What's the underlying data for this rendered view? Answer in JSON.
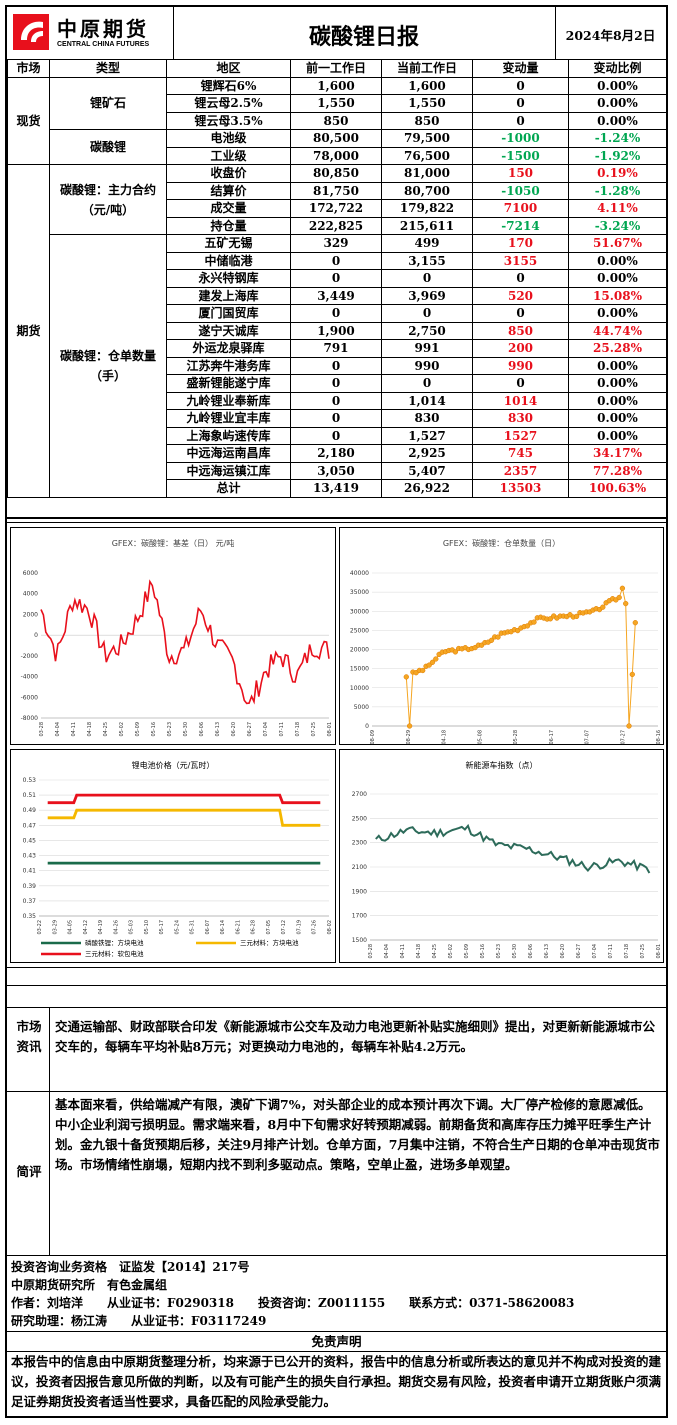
{
  "header": {
    "logo_cn": "中原期货",
    "logo_en": "CENTRAL CHINA FUTURES",
    "title": "碳酸锂日报",
    "date": "2024年8月2日"
  },
  "table": {
    "headers": [
      "市场",
      "类型",
      "地区",
      "前一工作日",
      "当前工作日",
      "变动量",
      "变动比例"
    ],
    "spot_market": "现货",
    "futures_market": "期货",
    "groups": {
      "ore": "锂矿石",
      "carbonate": "碳酸锂",
      "contract": "碳酸锂：主力合约（元/吨）",
      "warehouse": "碳酸锂：仓单数量（手）"
    },
    "rows": [
      {
        "name": "锂辉石6%",
        "prev": "1,600",
        "cur": "1,600",
        "chg": "0",
        "pct": "0.00%",
        "color": "black"
      },
      {
        "name": "锂云母2.5%",
        "prev": "1,550",
        "cur": "1,550",
        "chg": "0",
        "pct": "0.00%",
        "color": "black"
      },
      {
        "name": "锂云母3.5%",
        "prev": "850",
        "cur": "850",
        "chg": "0",
        "pct": "0.00%",
        "color": "black"
      },
      {
        "name": "电池级",
        "prev": "80,500",
        "cur": "79,500",
        "chg": "-1000",
        "pct": "-1.24%",
        "color": "green"
      },
      {
        "name": "工业级",
        "prev": "78,000",
        "cur": "76,500",
        "chg": "-1500",
        "pct": "-1.92%",
        "color": "green"
      },
      {
        "name": "收盘价",
        "prev": "80,850",
        "cur": "81,000",
        "chg": "150",
        "pct": "0.19%",
        "color": "red"
      },
      {
        "name": "结算价",
        "prev": "81,750",
        "cur": "80,700",
        "chg": "-1050",
        "pct": "-1.28%",
        "color": "green"
      },
      {
        "name": "成交量",
        "prev": "172,722",
        "cur": "179,822",
        "chg": "7100",
        "pct": "4.11%",
        "color": "red"
      },
      {
        "name": "持仓量",
        "prev": "222,825",
        "cur": "215,611",
        "chg": "-7214",
        "pct": "-3.24%",
        "color": "green"
      },
      {
        "name": "五矿无锡",
        "prev": "329",
        "cur": "499",
        "chg": "170",
        "pct": "51.67%",
        "color": "red"
      },
      {
        "name": "中储临港",
        "prev": "0",
        "cur": "3,155",
        "chg": "3155",
        "pct": "0.00%",
        "color": "mixred"
      },
      {
        "name": "永兴特钢库",
        "prev": "0",
        "cur": "0",
        "chg": "0",
        "pct": "0.00%",
        "color": "black"
      },
      {
        "name": "建发上海库",
        "prev": "3,449",
        "cur": "3,969",
        "chg": "520",
        "pct": "15.08%",
        "color": "red"
      },
      {
        "name": "厦门国贸库",
        "prev": "0",
        "cur": "0",
        "chg": "0",
        "pct": "0.00%",
        "color": "black"
      },
      {
        "name": "遂宁天诚库",
        "prev": "1,900",
        "cur": "2,750",
        "chg": "850",
        "pct": "44.74%",
        "color": "red"
      },
      {
        "name": "外运龙泉驿库",
        "prev": "791",
        "cur": "991",
        "chg": "200",
        "pct": "25.28%",
        "color": "red"
      },
      {
        "name": "江苏奔牛港务库",
        "prev": "0",
        "cur": "990",
        "chg": "990",
        "pct": "0.00%",
        "color": "mixred"
      },
      {
        "name": "盛新锂能遂宁库",
        "prev": "0",
        "cur": "0",
        "chg": "0",
        "pct": "0.00%",
        "color": "black"
      },
      {
        "name": "九岭锂业奉新库",
        "prev": "0",
        "cur": "1,014",
        "chg": "1014",
        "pct": "0.00%",
        "color": "mixred"
      },
      {
        "name": "九岭锂业宜丰库",
        "prev": "0",
        "cur": "830",
        "chg": "830",
        "pct": "0.00%",
        "color": "mixred"
      },
      {
        "name": "上海象屿速传库",
        "prev": "0",
        "cur": "1,527",
        "chg": "1527",
        "pct": "0.00%",
        "color": "mixred"
      },
      {
        "name": "中远海运南昌库",
        "prev": "2,180",
        "cur": "2,925",
        "chg": "745",
        "pct": "34.17%",
        "color": "red"
      },
      {
        "name": "中远海运镇江库",
        "prev": "3,050",
        "cur": "5,407",
        "chg": "2357",
        "pct": "77.28%",
        "color": "red"
      },
      {
        "name": "总计",
        "prev": "13,419",
        "cur": "26,922",
        "chg": "13503",
        "pct": "100.63%",
        "color": "red"
      }
    ]
  },
  "charts": {
    "basis": {
      "title": "GFEX：碳酸锂：基差（日） 元/吨",
      "yticks": [
        "6000",
        "4000",
        "2000",
        "0",
        "-2000",
        "-4000",
        "-6000",
        "-8000"
      ],
      "xticks": [
        "03-28",
        "04-04",
        "04-11",
        "04-18",
        "04-25",
        "05-02",
        "05-09",
        "05-16",
        "05-23",
        "05-30",
        "06-06",
        "06-13",
        "06-20",
        "06-27",
        "07-04",
        "07-11",
        "07-18",
        "07-25",
        "08-01"
      ]
    },
    "warehouse": {
      "title": "GFEX：碳酸锂：仓单数量（日）",
      "yticks": [
        "40000",
        "35000",
        "30000",
        "25000",
        "20000",
        "15000",
        "10000",
        "5000",
        "0"
      ],
      "xticks": [
        "08-09",
        "08-29",
        "04-18",
        "05-08",
        "05-28",
        "06-17",
        "07-07",
        "07-27",
        "08-16"
      ]
    },
    "battery": {
      "title": "锂电池价格（元/瓦时）",
      "yticks": [
        "0.53",
        "0.51",
        "0.49",
        "0.47",
        "0.45",
        "0.43",
        "0.41",
        "0.39",
        "0.37",
        "0.35"
      ],
      "xticks": [
        "03-22",
        "03-29",
        "04-05",
        "04-12",
        "04-19",
        "04-26",
        "05-03",
        "05-10",
        "05-17",
        "05-24",
        "05-31",
        "06-07",
        "06-14",
        "06-21",
        "06-28",
        "07-05",
        "07-12",
        "07-19",
        "07-26",
        "08-02"
      ],
      "legend": [
        "磷酸铁锂：方块电池",
        "三元材料：方块电池",
        "三元材料：软包电池"
      ]
    },
    "nev_index": {
      "title": "新能源车指数（点）",
      "yticks": [
        "2700",
        "2500",
        "2300",
        "2100",
        "1900",
        "1700",
        "1500"
      ],
      "xticks": [
        "03-28",
        "04-04",
        "04-11",
        "04-18",
        "04-25",
        "05-02",
        "05-09",
        "05-16",
        "05-23",
        "05-30",
        "06-06",
        "06-13",
        "06-20",
        "06-27",
        "07-04",
        "07-11",
        "07-18",
        "07-25",
        "08-01"
      ]
    }
  },
  "chart_data": [
    {
      "type": "line",
      "title": "GFEX：碳酸锂：基差（日） 元/吨",
      "ylim": [
        -8000,
        6000
      ],
      "x": [
        "03-28",
        "04-04",
        "04-11",
        "04-18",
        "04-25",
        "05-02",
        "05-09",
        "05-16",
        "05-23",
        "05-30",
        "06-06",
        "06-13",
        "06-20",
        "06-27",
        "07-04",
        "07-11",
        "07-18",
        "07-25",
        "08-01"
      ],
      "series": [
        {
          "values": [
            2500,
            -2000,
            3500,
            2500,
            -2000,
            -1000,
            1500,
            5000,
            -2000,
            -1500,
            2500,
            -1000,
            -2500,
            -7000,
            -3500,
            -2000,
            -4000,
            -1000,
            -1500
          ],
          "color": "#e8101c"
        }
      ]
    },
    {
      "type": "line",
      "title": "GFEX：碳酸锂：仓单数量（日）",
      "ylim": [
        0,
        40000
      ],
      "x": [
        "08-29",
        "04-18",
        "05-08",
        "05-28",
        "06-17",
        "07-07",
        "07-27"
      ],
      "series": [
        {
          "values": [
            13000,
            19500,
            21000,
            25000,
            28500,
            29500,
            27000
          ],
          "color": "#f5a623"
        }
      ]
    },
    {
      "type": "line",
      "title": "锂电池价格（元/瓦时）",
      "ylim": [
        0.35,
        0.53
      ],
      "x": [
        "03-22",
        "04-05",
        "07-19",
        "08-02"
      ],
      "series": [
        {
          "name": "磷酸铁锂：方块电池",
          "values": [
            0.42,
            0.42,
            0.42,
            0.42
          ],
          "color": "#1a6b4a"
        },
        {
          "name": "三元材料：方块电池",
          "values": [
            0.48,
            0.49,
            0.49,
            0.47
          ],
          "color": "#f5b800"
        },
        {
          "name": "三元材料：软包电池",
          "values": [
            0.5,
            0.51,
            0.51,
            0.5
          ],
          "color": "#e8101c"
        }
      ]
    },
    {
      "type": "line",
      "title": "新能源车指数（点）",
      "ylim": [
        1500,
        2700
      ],
      "x": [
        "03-28",
        "04-11",
        "04-25",
        "05-09",
        "05-23",
        "06-06",
        "06-20",
        "07-04",
        "07-18",
        "08-01"
      ],
      "series": [
        {
          "values": [
            2320,
            2400,
            2380,
            2420,
            2280,
            2250,
            2180,
            2100,
            2150,
            2080
          ],
          "color": "#2d6b5a"
        }
      ]
    }
  ],
  "info": {
    "market_label": "市场资讯",
    "market_text": "交通运输部、财政部联合印发《新能源城市公交车及动力电池更新补贴实施细则》提出，对更新新能源城市公交车的，每辆车平均补贴8万元；对更换动力电池的，每辆车补贴4.2万元。",
    "comment_label": "简评",
    "comment_text": "基本面来看，供给端减产有限，澳矿下调7%，对头部企业的成本预计再次下调。大厂停产检修的意愿减低。中小企业利润亏损明显。需求端来看，8月中下旬需求好转预期减弱。前期备货和高库存压力摊平旺季生产计划。金九银十备货预期后移，关注9月排产计划。仓单方面，7月集中注销，不符合生产日期的仓单冲击现货市场。市场情绪性崩塌，短期内找不到利多驱动点。策略，空单止盈，进场多单观望。"
  },
  "footer": {
    "line1": "投资咨询业务资格　证监发【2014】217号",
    "line2": "中原期货研究所　有色金属组",
    "line3": "作者：刘培洋　　从业证书：F0290318　　投资咨询：Z0011155　　联系方式：0371-58620083",
    "line4": "研究助理：杨江涛　　从业证书：F03117249",
    "disclaimer_title": "免责声明",
    "disclaimer": "本报告中的信息由中原期货整理分析，均来源于已公开的资料，报告中的信息分析或所表达的意见并不构成对投资的建议，投资者因报告意见所做的判断，以及有可能产生的损失自行承担。期货交易有风险，投资者申请开立期货账户须满足证券期货投资者适当性要求，具备匹配的风险承受能力。"
  }
}
